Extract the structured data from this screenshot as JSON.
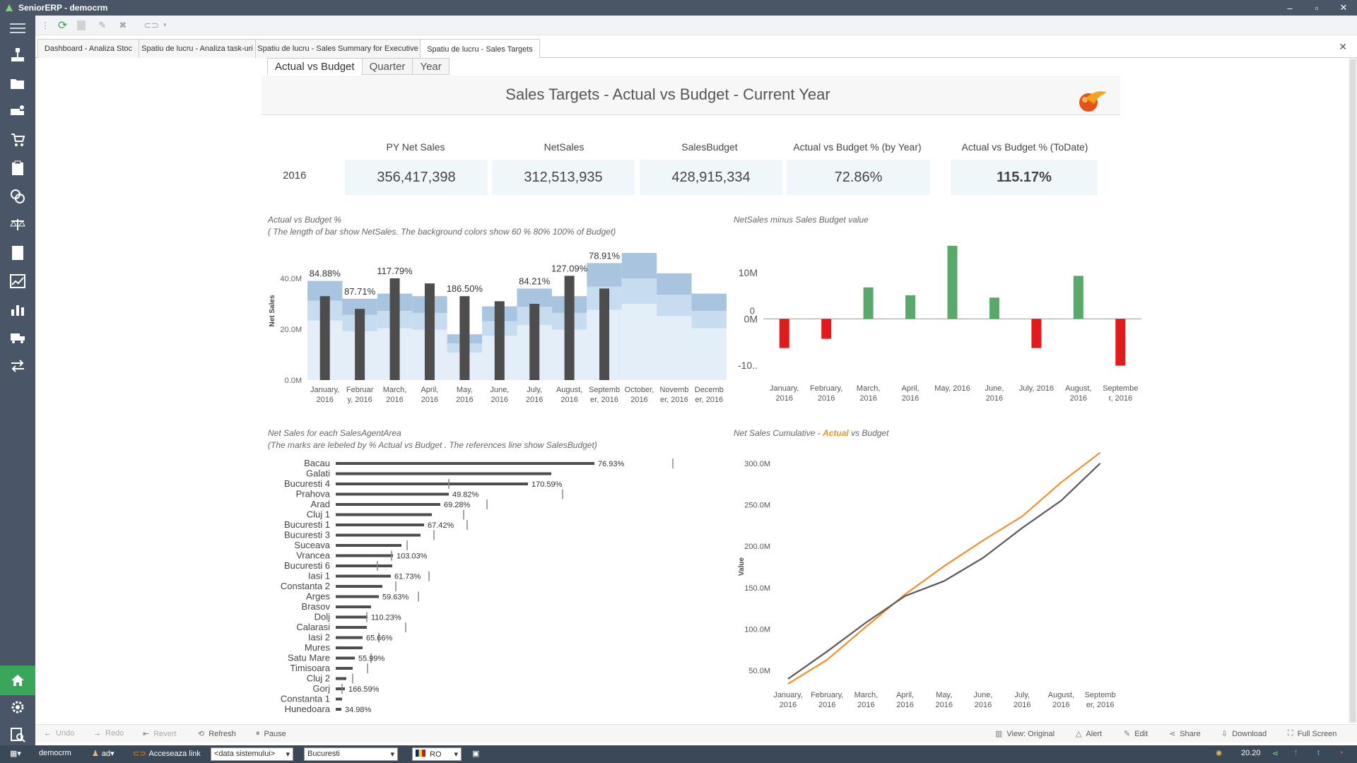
{
  "window": {
    "title": "SeniorERP - democrm",
    "controls": [
      "–",
      "▫",
      "✕"
    ]
  },
  "doc_tabs": [
    {
      "label": "Dashboard - Analiza Stoc"
    },
    {
      "label": "Spatiu de lucru - Analiza task-uri"
    },
    {
      "label": "Spatiu de lucru - Sales Summary for Executive"
    },
    {
      "label": "Spatiu de lucru - Sales Targets"
    }
  ],
  "view_tabs": [
    "Actual vs Budget",
    "Quarter",
    "Year"
  ],
  "dashboard": {
    "title": "Sales Targets - Actual vs Budget - Current Year",
    "year": "2016",
    "kpis": [
      {
        "label": "PY Net Sales",
        "value": "356,417,398"
      },
      {
        "label": "NetSales",
        "value": "312,513,935"
      },
      {
        "label": "SalesBudget",
        "value": "428,915,334"
      },
      {
        "label": "Actual vs Budget % (by Year)",
        "value": "72.86%"
      },
      {
        "label": "Actual vs Budget % (ToDate)",
        "value": "115.17%"
      }
    ]
  },
  "chart_data": [
    {
      "type": "bar",
      "title": "Actual vs Budget %",
      "subtitle": "( The length of bar show NetSales. The background colors show 60 % 80% 100% of Budget)",
      "ylabel": "Net Sales",
      "yticks": [
        "0.0M",
        "20.0M",
        "40.0M"
      ],
      "ylim": [
        0,
        55
      ],
      "categories": [
        "January, 2016",
        "February, 2016",
        "March, 2016",
        "April, 2016",
        "May, 2016",
        "June, 2016",
        "July, 2016",
        "August, 2016",
        "September, 2016",
        "October, 2016",
        "November, 2016",
        "December, 2016"
      ],
      "category_labels": [
        [
          "January,",
          "2016"
        ],
        [
          "Februar",
          "y, 2016"
        ],
        [
          "March,",
          "2016"
        ],
        [
          "April,",
          "2016"
        ],
        [
          "May,",
          "2016"
        ],
        [
          "June,",
          "2016"
        ],
        [
          "July,",
          "2016"
        ],
        [
          "August,",
          "2016"
        ],
        [
          "Septemb",
          "er, 2016"
        ],
        [
          "October,",
          "2016"
        ],
        [
          "Novemb",
          "er, 2016"
        ],
        [
          "Decemb",
          "er, 2016"
        ]
      ],
      "net_sales_m": [
        33,
        28,
        40,
        38,
        33,
        31,
        30,
        41,
        36,
        null,
        null,
        null
      ],
      "budget_m": [
        39,
        32,
        34,
        33,
        18,
        29,
        36,
        33,
        46,
        50,
        42,
        34
      ],
      "pct_labels": [
        "84.88%",
        "87.71%",
        "117.79%",
        "",
        "186.50%",
        "",
        "84.21%",
        "127.09%",
        "78.91%",
        "",
        "",
        ""
      ],
      "colors": {
        "bar": "#4d4d4d",
        "band60": "#e3eef8",
        "band80": "#c7dcee",
        "band100": "#a8c4de"
      }
    },
    {
      "type": "bar",
      "title": "NetSales minus Sales Budget value",
      "yticks": [
        "10M",
        "0M",
        "-10.."
      ],
      "zero_label": "0",
      "ylim": [
        -12,
        17
      ],
      "categories": [
        "January, 2016",
        "February, 2016",
        "March, 2016",
        "April, 2016",
        "May, 2016",
        "June, 2016",
        "July, 2016",
        "August, 2016",
        "September, 2016"
      ],
      "category_labels": [
        [
          "January,",
          "2016"
        ],
        [
          "February,",
          "2016"
        ],
        [
          "March,",
          "2016"
        ],
        [
          "April,",
          "2016"
        ],
        [
          "May, 2016",
          ""
        ],
        [
          "June,",
          "2016"
        ],
        [
          "July, 2016",
          ""
        ],
        [
          "August,",
          "2016"
        ],
        [
          "Septembe",
          "r, 2016"
        ]
      ],
      "values_m": [
        -6.3,
        -4.3,
        6.8,
        5.1,
        15.8,
        4.6,
        -6.3,
        9.3,
        -10.1
      ],
      "colors": {
        "positive": "#59a96a",
        "negative": "#e31a1c"
      }
    },
    {
      "type": "bar",
      "title": "Net Sales for each SalesAgentArea",
      "subtitle": "(The marks are lebeled by % Actual vs Budget . The references line show SalesBudget)",
      "orientation": "horizontal",
      "categories": [
        "Bacau",
        "Galati",
        "Bucuresti 4",
        "Prahova",
        "Arad",
        "Cluj 1",
        "Bucuresti 1",
        "Bucuresti 3",
        "Suceava",
        "Vrancea",
        "Bucuresti 6",
        "Iasi 1",
        "Constanta 2",
        "Arges",
        "Brasov",
        "Dolj",
        "Calarasi",
        "Iasi 2",
        "Mures",
        "Satu Mare",
        "Timisoara",
        "Cluj 2",
        "Gorj",
        "Constanta 1",
        "Hunedoara"
      ],
      "values_m": [
        36.6,
        30.5,
        27.2,
        16.0,
        14.8,
        13.6,
        12.5,
        12.0,
        9.3,
        8.1,
        8.0,
        7.8,
        6.6,
        6.1,
        5.0,
        4.5,
        4.4,
        3.8,
        3.8,
        2.7,
        2.4,
        1.5,
        1.3,
        0.9,
        0.8
      ],
      "budget_m": [
        47.7,
        null,
        16.0,
        32.1,
        21.4,
        18.1,
        18.6,
        13.9,
        10.1,
        7.9,
        5.9,
        13.2,
        8.5,
        11.7,
        null,
        4.4,
        9.9,
        6.1,
        null,
        5.0,
        4.5,
        2.4,
        0.9,
        null,
        null
      ],
      "pct_labels": [
        "76.93%",
        "",
        "170.59%",
        "49.82%",
        "69.28%",
        "",
        "67.42%",
        "",
        "",
        "103.03%",
        "",
        "61.73%",
        "",
        "59.63%",
        "",
        "110.23%",
        "",
        "65.66%",
        "",
        "55.99%",
        "",
        "",
        "166.59%",
        "",
        "34.98%"
      ],
      "colors": {
        "bar": "#4d4d4d"
      }
    },
    {
      "type": "line",
      "title": "Net Sales Cumulative - Actual  vs Budget",
      "title_parts": [
        "Net Sales Cumulative - ",
        "Actual",
        "  vs Budget"
      ],
      "ylabel": "Value",
      "yticks": [
        "50.0M",
        "100.0M",
        "150.0M",
        "200.0M",
        "250.0M",
        "300.0M"
      ],
      "ylim": [
        28,
        322
      ],
      "categories": [
        "January, 2016",
        "February, 2016",
        "March, 2016",
        "April, 2016",
        "May, 2016",
        "June, 2016",
        "July, 2016",
        "August, 2016",
        "September, 2016"
      ],
      "category_labels": [
        [
          "January,",
          "2016"
        ],
        [
          "February,",
          "2016"
        ],
        [
          "March,",
          "2016"
        ],
        [
          "April,",
          "2016"
        ],
        [
          "May,",
          "2016"
        ],
        [
          "June,",
          "2016"
        ],
        [
          "July,",
          "2016"
        ],
        [
          "August,",
          "2016"
        ],
        [
          "Septemb",
          "er, 2016"
        ]
      ],
      "series": [
        {
          "name": "Actual",
          "values_m": [
            34,
            63,
            103,
            142,
            176,
            207,
            236,
            277,
            313
          ],
          "color": "#f28e2b"
        },
        {
          "name": "Budget",
          "values_m": [
            40,
            73,
            108,
            140,
            158,
            186,
            222,
            255,
            300
          ],
          "color": "#595959"
        }
      ]
    }
  ],
  "bottom_toolbar": {
    "left": [
      "Undo",
      "Redo",
      "Revert",
      "Refresh",
      "Pause"
    ],
    "right": [
      "View: Original",
      "Alert",
      "Edit",
      "Share",
      "Download",
      "Full Screen"
    ]
  },
  "status": {
    "user": "democrm",
    "role": "ad",
    "link": "Acceseaza link",
    "date_select": "<data sistemului>",
    "location_select": "Bucuresti",
    "language": "RO",
    "time": "20.20"
  },
  "colors": {
    "sidebar": "#4a5568",
    "statusbar": "#3b4858",
    "home": "#3aa65a"
  }
}
